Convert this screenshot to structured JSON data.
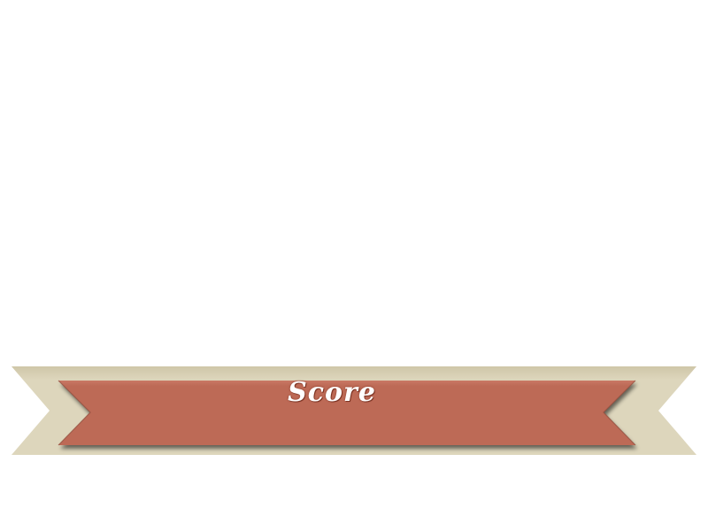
{
  "banner": {
    "label": "Score",
    "colors": {
      "outer_ribbon": "#ddd6bc",
      "outer_ribbon_top": "#cfc6a8",
      "inner_ribbon": "#bd6b57",
      "inner_ribbon_top": "#c97865",
      "inner_ribbon_shadow": "#8e4a3a",
      "text": "#ffffff"
    }
  }
}
